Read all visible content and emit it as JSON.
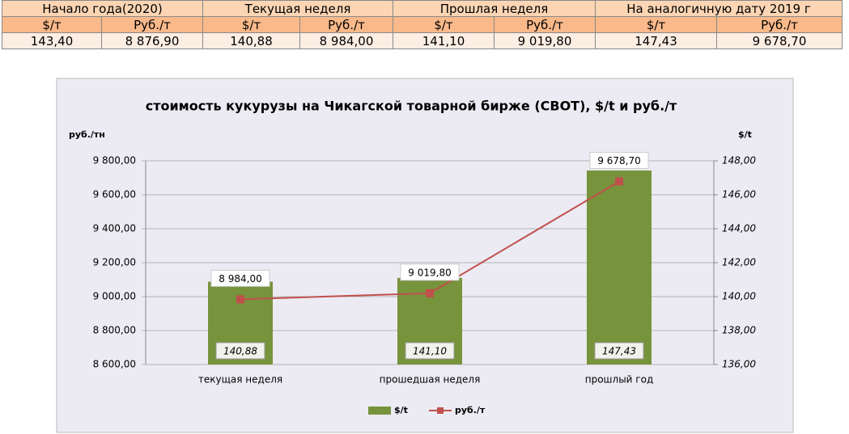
{
  "table": {
    "groups": [
      "Начало года(2020)",
      "Текущая неделя",
      "Прошлая неделя",
      "На аналогичную дату 2019 г"
    ],
    "units": [
      "$/т",
      "Руб./т",
      "$/т",
      "Руб./т",
      "$/т",
      "Руб./т",
      "$/т",
      "Руб./т"
    ],
    "values": [
      "143,40",
      "8 876,90",
      "140,88",
      "8 984,00",
      "141,10",
      "9 019,80",
      "147,43",
      "9 678,70"
    ]
  },
  "chart_data": {
    "type": "bar-line",
    "title": "стоимость кукурузы на Чикагской товарной бирже (CBOT), $/t и руб./т",
    "y_label": "руб./тн",
    "y2_label": "$/t",
    "categories": [
      "текущая неделя",
      "прошедшая неделя",
      "прошлый год"
    ],
    "series": [
      {
        "name": "$/t",
        "type": "bar",
        "axis": "y2",
        "color": "#77933c",
        "values": [
          140.88,
          141.1,
          147.43
        ],
        "value_labels": [
          "140,88",
          "141,10",
          "147,43"
        ]
      },
      {
        "name": "руб./т",
        "type": "line",
        "axis": "y",
        "color": "#c0504d",
        "values": [
          8984.0,
          9019.8,
          9678.7
        ],
        "value_labels": [
          "8 984,00",
          "9 019,80",
          "9 678,70"
        ]
      }
    ],
    "ylim": [
      8600,
      9800
    ],
    "yticks": [
      {
        "value": 8600,
        "label": "8 600,00"
      },
      {
        "value": 8800,
        "label": "8 800,00"
      },
      {
        "value": 9000,
        "label": "9 000,00"
      },
      {
        "value": 9200,
        "label": "9 200,00"
      },
      {
        "value": 9400,
        "label": "9 400,00"
      },
      {
        "value": 9600,
        "label": "9 600,00"
      },
      {
        "value": 9800,
        "label": "9 800,00"
      }
    ],
    "y2lim": [
      136,
      148
    ],
    "y2ticks": [
      {
        "value": 136,
        "label": "136,00"
      },
      {
        "value": 138,
        "label": "138,00"
      },
      {
        "value": 140,
        "label": "140,00"
      },
      {
        "value": 142,
        "label": "142,00"
      },
      {
        "value": 144,
        "label": "144,00"
      },
      {
        "value": 146,
        "label": "146,00"
      },
      {
        "value": 148,
        "label": "148,00"
      }
    ],
    "grid": true,
    "legend": "bottom"
  }
}
